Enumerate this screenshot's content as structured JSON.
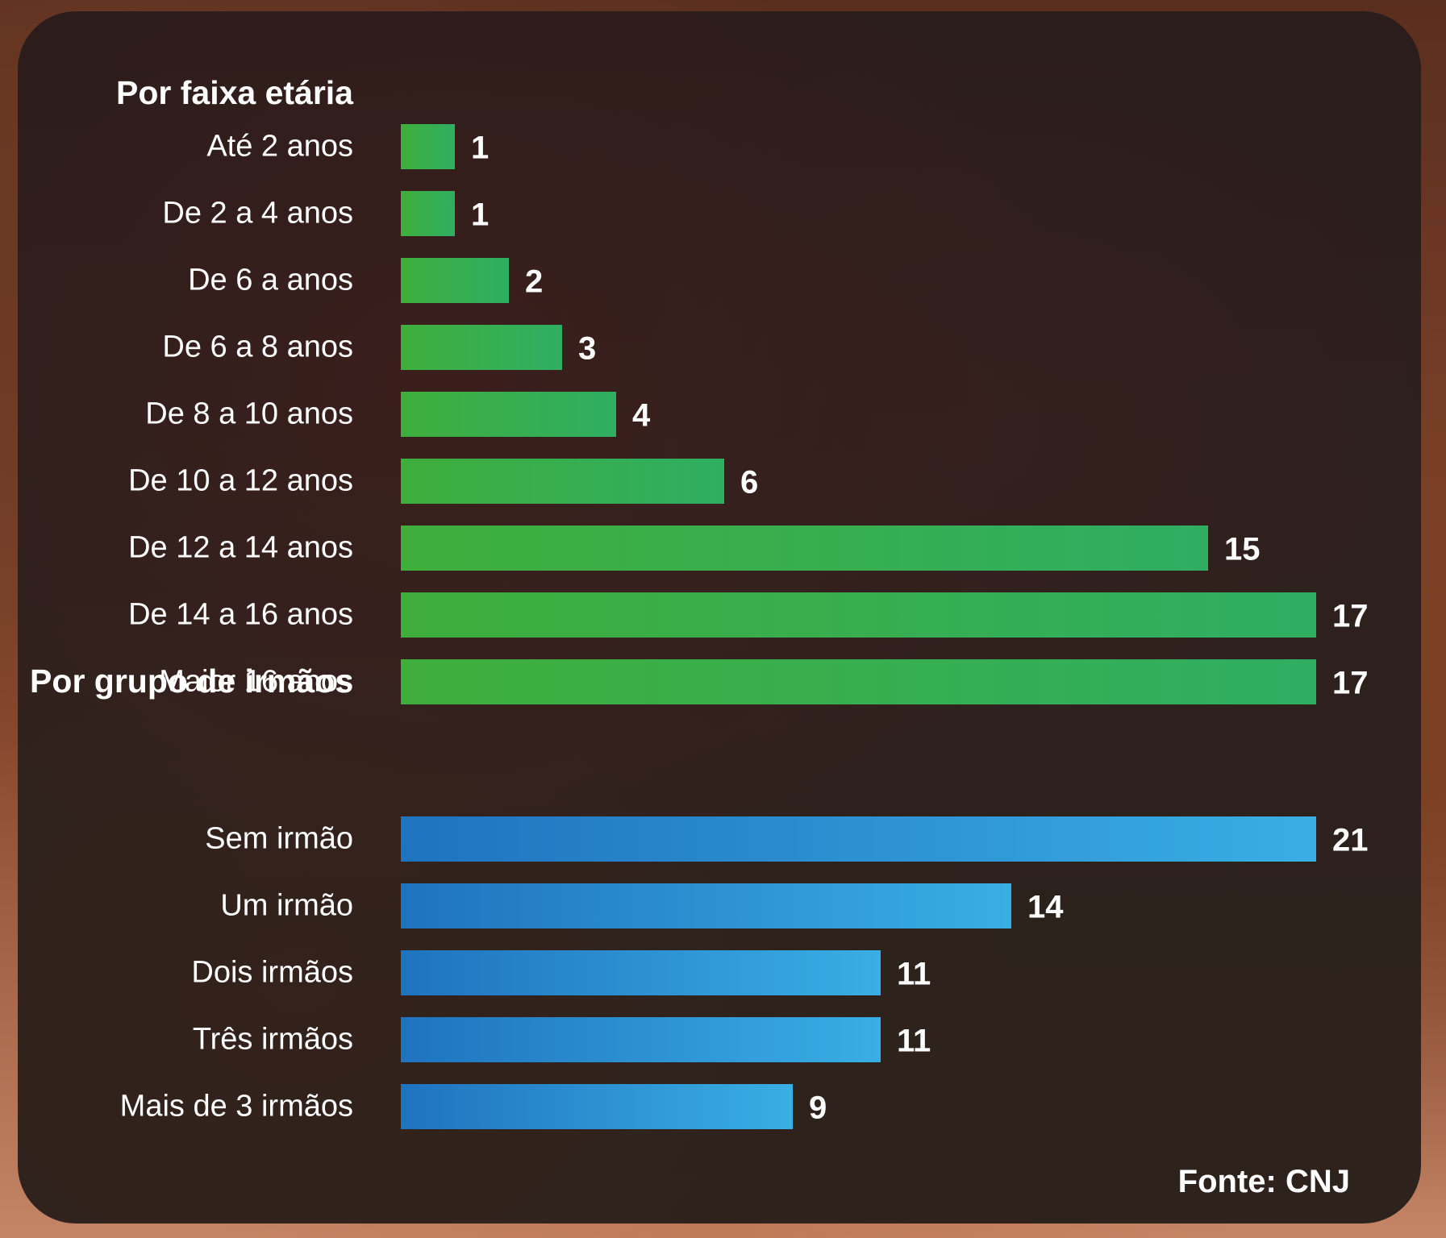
{
  "chart_data": [
    {
      "type": "bar",
      "orientation": "horizontal",
      "title": "Por faixa etária",
      "categories": [
        "Até 2 anos",
        "De 2 a 4 anos",
        "De 6 a anos",
        "De 6 a 8 anos",
        "De 8 a 10 anos",
        "De 10 a 12 anos",
        "De 12 a 14 anos",
        "De 14 a 16 anos",
        "Maior 16 anos"
      ],
      "values": [
        1,
        1,
        2,
        3,
        4,
        6,
        15,
        17,
        17
      ],
      "xlim": [
        0,
        17
      ],
      "color": "#3aae4a"
    },
    {
      "type": "bar",
      "orientation": "horizontal",
      "title": "Por grupo de irmãos",
      "categories": [
        "Sem irmão",
        "Um irmão",
        "Dois irmãos",
        "Três irmãos",
        "Mais de 3 irmãos"
      ],
      "values": [
        21,
        14,
        11,
        11,
        9
      ],
      "xlim": [
        0,
        21
      ],
      "color": "#2a8fd4"
    }
  ],
  "source": "Fonte: CNJ"
}
